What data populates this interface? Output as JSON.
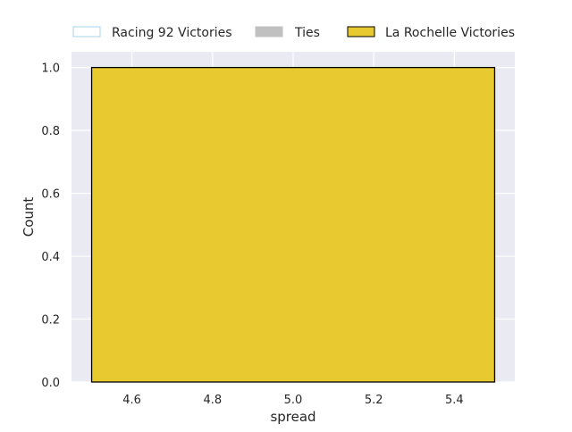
{
  "chart_data": {
    "type": "bar",
    "title": "",
    "xlabel": "spread",
    "ylabel": "Count",
    "xlim": [
      4.45,
      5.55
    ],
    "ylim": [
      0,
      1.05
    ],
    "xticks": [
      "4.6",
      "4.8",
      "5.0",
      "5.2",
      "5.4"
    ],
    "yticks": [
      "0.0",
      "0.2",
      "0.4",
      "0.6",
      "0.8",
      "1.0"
    ],
    "grid": true,
    "legend_position": "top",
    "legend": [
      {
        "label": "Racing 92 Victories",
        "color": "#ffffff",
        "edge": "#a9d3ec"
      },
      {
        "label": "Ties",
        "color": "#c0c0c0",
        "edge": "#c0c0c0"
      },
      {
        "label": "La Rochelle Victories",
        "color": "#e8c930",
        "edge": "#000000"
      }
    ],
    "bars": [
      {
        "series": "La Rochelle Victories",
        "x_start": 4.5,
        "x_end": 5.5,
        "value": 1.0
      }
    ],
    "colors": {
      "background": "#eaeaf2",
      "grid": "#ffffff",
      "bar": "#e8c930",
      "bar_edge": "#000000"
    }
  }
}
